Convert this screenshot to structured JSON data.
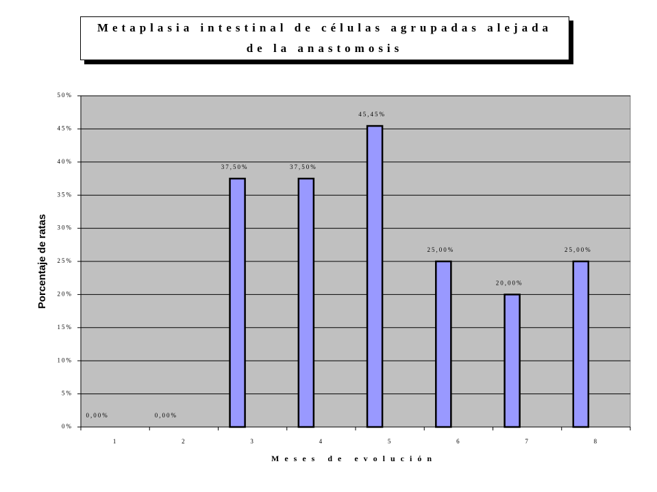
{
  "chart_data": {
    "type": "bar",
    "title": "Metaplasia intestinal de células agrupadas alejada de la anastomosis",
    "x_label": "Meses de evolución",
    "y_label": "Porcentaje de ratas",
    "categories": [
      "1",
      "2",
      "3",
      "4",
      "5",
      "6",
      "7",
      "8"
    ],
    "values": [
      0,
      0,
      37.5,
      37.5,
      45.45,
      25,
      20,
      25
    ],
    "value_labels": [
      "0,00%",
      "0,00%",
      "37,50%",
      "37,50%",
      "45,45%",
      "25,00%",
      "20,00%",
      "25,00%"
    ],
    "color": "#9999ff",
    "ylim": [
      0,
      50
    ],
    "yticks": [
      {
        "value": 0,
        "label": "0%"
      },
      {
        "value": 5,
        "label": "5%"
      },
      {
        "value": 10,
        "label": "10%"
      },
      {
        "value": 15,
        "label": "15%"
      },
      {
        "value": 20,
        "label": "20%"
      },
      {
        "value": 25,
        "label": "25%"
      },
      {
        "value": 30,
        "label": "30%"
      },
      {
        "value": 35,
        "label": "35%"
      },
      {
        "value": 40,
        "label": "40%"
      },
      {
        "value": 45,
        "label": "45%"
      },
      {
        "value": 50,
        "label": "50%"
      }
    ],
    "grid": true
  }
}
